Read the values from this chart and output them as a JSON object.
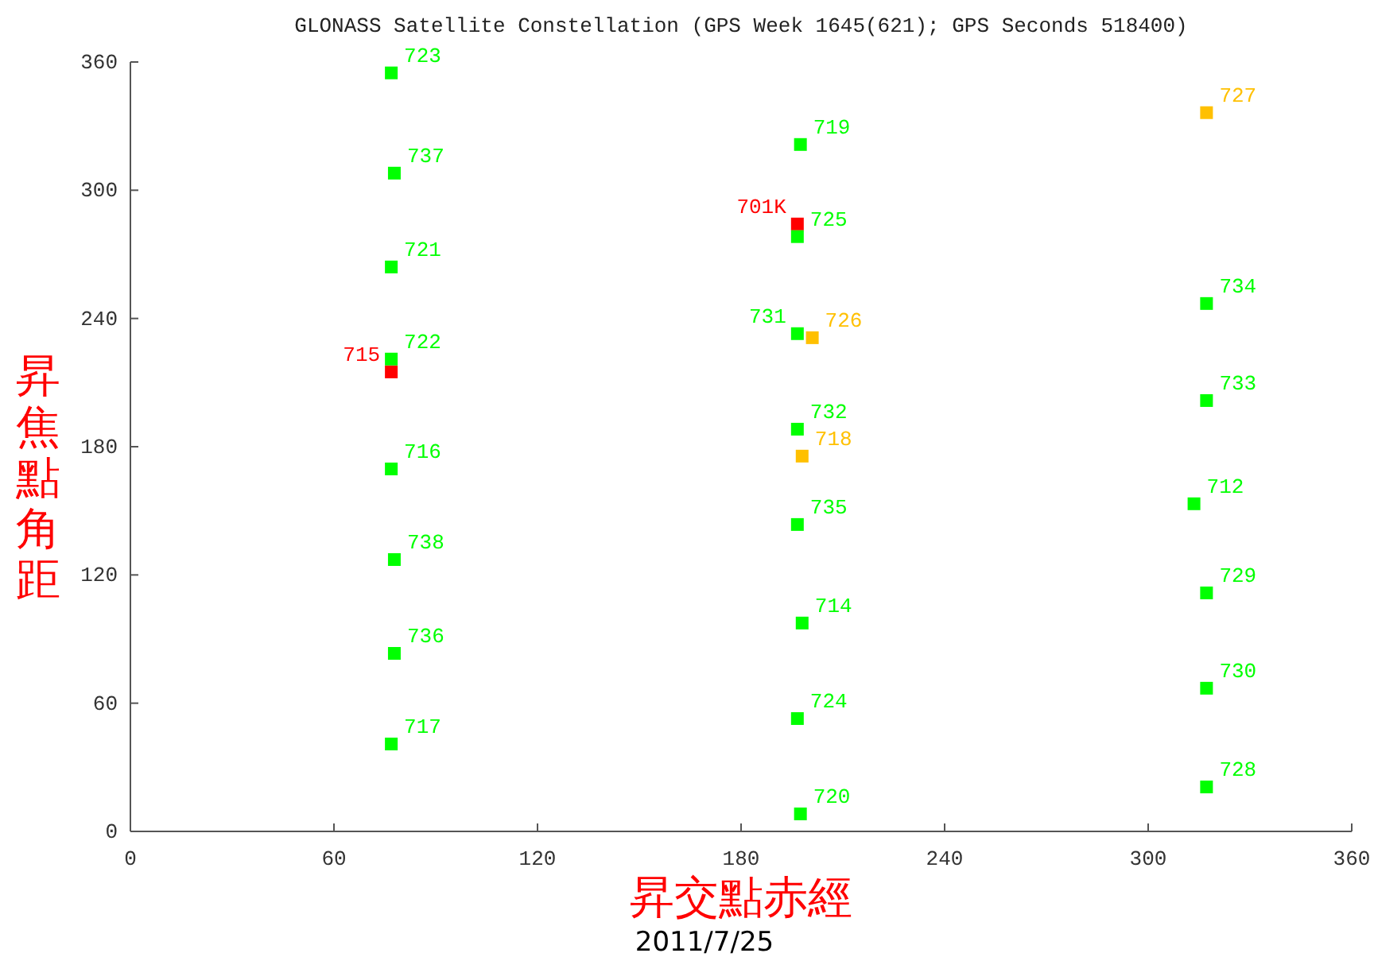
{
  "chart_data": {
    "type": "scatter",
    "title": "GLONASS Satellite Constellation (GPS Week 1645(621); GPS Seconds 518400)",
    "xlabel": "昇交點赤經",
    "ylabel": "昇焦點角距",
    "marker": "square",
    "grid": false,
    "xlim": [
      0,
      360
    ],
    "ylim": [
      0,
      360
    ],
    "xticks": [
      0,
      60,
      120,
      180,
      240,
      300,
      360
    ],
    "yticks": [
      0,
      60,
      120,
      180,
      240,
      300,
      360
    ],
    "series": [
      {
        "color": "#ffc000",
        "x": [
          201,
          198,
          317.2
        ],
        "values": [
          231,
          175.6,
          336.3
        ]
      },
      {
        "color": "#ff0000",
        "x": [
          76.9,
          196.6
        ],
        "values": [
          215,
          284.2
        ]
      },
      {
        "color": "#00ff00",
        "x": [
          76.9,
          77.8,
          76.9,
          76.9,
          76.9,
          77.8,
          77.8,
          76.9,
          197.5,
          196.6,
          196.6,
          196.6,
          196.6,
          198,
          196.6,
          197.5,
          317.2,
          317.2,
          313.5,
          317.2,
          317.2,
          317.2
        ],
        "values": [
          354.9,
          308,
          264.1,
          221,
          169.6,
          127.2,
          83.3,
          40.9,
          321.4,
          278.3,
          232.9,
          188.2,
          143.6,
          97.5,
          52.8,
          8.2,
          247,
          201.6,
          153.3,
          111.6,
          67,
          20.8
        ]
      }
    ],
    "annotations": [
      {
        "text": "723",
        "x": 76.9,
        "y": 354.9
      },
      {
        "text": "737",
        "x": 77.8,
        "y": 308
      },
      {
        "text": "721",
        "x": 76.9,
        "y": 264.1
      },
      {
        "text": "715",
        "x": 76.9,
        "y": 215
      },
      {
        "text": "722",
        "x": 76.9,
        "y": 221
      },
      {
        "text": "716",
        "x": 76.9,
        "y": 169.6
      },
      {
        "text": "738",
        "x": 77.8,
        "y": 127.2
      },
      {
        "text": "736",
        "x": 77.8,
        "y": 83.3
      },
      {
        "text": "717",
        "x": 76.9,
        "y": 40.9
      },
      {
        "text": "719",
        "x": 197.5,
        "y": 321.4
      },
      {
        "text": "701K",
        "x": 196.6,
        "y": 284.2
      },
      {
        "text": "725",
        "x": 196.6,
        "y": 278.3
      },
      {
        "text": "731",
        "x": 196.6,
        "y": 232.9
      },
      {
        "text": "726",
        "x": 201,
        "y": 231
      },
      {
        "text": "732",
        "x": 196.6,
        "y": 188.2
      },
      {
        "text": "718",
        "x": 198,
        "y": 175.6
      },
      {
        "text": "735",
        "x": 196.6,
        "y": 143.6
      },
      {
        "text": "714",
        "x": 198,
        "y": 97.5
      },
      {
        "text": "724",
        "x": 196.6,
        "y": 52.8
      },
      {
        "text": "720",
        "x": 197.5,
        "y": 8.2
      },
      {
        "text": "727",
        "x": 317.2,
        "y": 336.3
      },
      {
        "text": "734",
        "x": 317.2,
        "y": 247
      },
      {
        "text": "733",
        "x": 317.2,
        "y": 201.6
      },
      {
        "text": "712",
        "x": 313.5,
        "y": 153.3
      },
      {
        "text": "729",
        "x": 317.2,
        "y": 111.6
      },
      {
        "text": "730",
        "x": 317.2,
        "y": 67
      },
      {
        "text": "728",
        "x": 317.2,
        "y": 20.8
      },
      "2011/7/25"
    ]
  }
}
